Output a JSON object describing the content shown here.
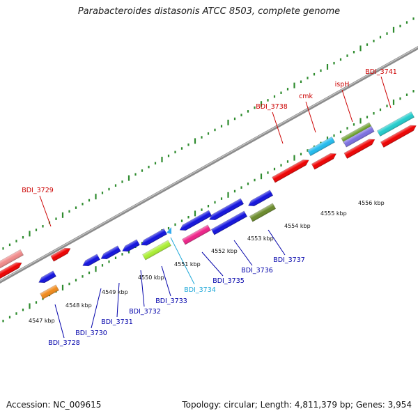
{
  "title": "Parabacteroides distasonis ATCC 8503, complete genome",
  "footer": {
    "accession": "Accession: NC_009615",
    "summary": "Topology: circular; Length: 4,811,379 bp; Genes: 3,954"
  },
  "colors": {
    "backbone": "#8c8c8c",
    "tick": "#2e8b2e",
    "label_forward": "#cc0000",
    "label_reverse": "#0000aa",
    "label_highlight": "#1fa8d8"
  },
  "scale_labels": [
    "4547 kbp",
    "4548 kbp",
    "4549 kbp",
    "4550 kbp",
    "4551 kbp",
    "4552 kbp",
    "4553 kbp",
    "4554 kbp",
    "4555 kbp",
    "4556 kbp"
  ],
  "gene_labels": [
    {
      "id": "BDI_3729",
      "strand": "forward"
    },
    {
      "id": "BDI_3738",
      "strand": "forward"
    },
    {
      "id": "cmk",
      "strand": "forward"
    },
    {
      "id": "ispH",
      "strand": "forward"
    },
    {
      "id": "BDI_3741",
      "strand": "forward"
    },
    {
      "id": "BDI_3728",
      "strand": "reverse"
    },
    {
      "id": "BDI_3730",
      "strand": "reverse"
    },
    {
      "id": "BDI_3731",
      "strand": "reverse"
    },
    {
      "id": "BDI_3732",
      "strand": "reverse"
    },
    {
      "id": "BDI_3733",
      "strand": "reverse"
    },
    {
      "id": "BDI_3734",
      "strand": "reverse",
      "highlight": true
    },
    {
      "id": "BDI_3735",
      "strand": "reverse"
    },
    {
      "id": "BDI_3736",
      "strand": "reverse"
    },
    {
      "id": "BDI_3737",
      "strand": "reverse"
    }
  ]
}
